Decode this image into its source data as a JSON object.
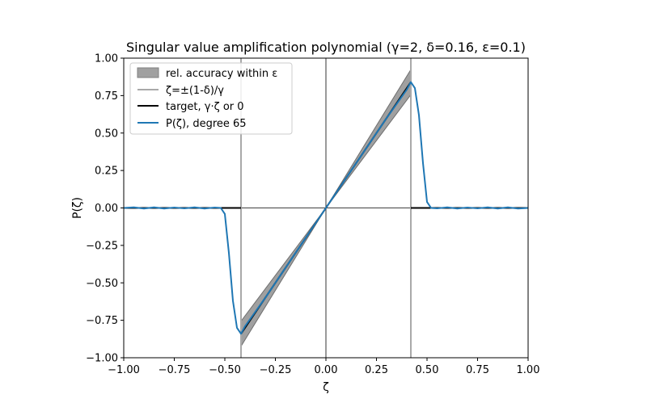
{
  "chart_data": {
    "type": "line",
    "title": "Singular value amplification polynomial (γ=2, δ=0.16, ε=0.1)",
    "xlabel": "ζ",
    "ylabel": "P(ζ)",
    "xlim": [
      -1.0,
      1.0
    ],
    "ylim": [
      -1.0,
      1.0
    ],
    "xticks": [
      "−1.00",
      "−0.75",
      "−0.50",
      "−0.25",
      "0.00",
      "0.25",
      "0.50",
      "0.75",
      "1.00"
    ],
    "yticks": [
      "−1.00",
      "−0.75",
      "−0.50",
      "−0.25",
      "0.00",
      "0.25",
      "0.50",
      "0.75",
      "1.00"
    ],
    "xtick_values": [
      -1.0,
      -0.75,
      -0.5,
      -0.25,
      0.0,
      0.25,
      0.5,
      0.75,
      1.0
    ],
    "ytick_values": [
      -1.0,
      -0.75,
      -0.5,
      -0.25,
      0.0,
      0.25,
      0.5,
      0.75,
      1.0
    ],
    "grid": false,
    "legend_position": "top-left",
    "params": {
      "gamma": 2,
      "delta": 0.16,
      "epsilon": 0.1,
      "degree": 65
    },
    "series": [
      {
        "name": "rel. accuracy within ε",
        "kind": "band",
        "color": "#808080",
        "x_range": [
          -0.42,
          0.42
        ],
        "center_slope": 2,
        "relative_width": 0.1
      },
      {
        "name": "ζ=±(1-δ)/γ",
        "kind": "vlines",
        "color": "#a9a9a9",
        "x": [
          -0.42,
          0.42
        ]
      },
      {
        "name": "target, γ·ζ or 0",
        "kind": "piecewise",
        "color": "#000000",
        "segments": [
          {
            "x": [
              -1.0,
              -0.42
            ],
            "y": [
              0,
              0
            ]
          },
          {
            "x": [
              -0.42,
              0.42
            ],
            "y": [
              -0.84,
              0.84
            ]
          },
          {
            "x": [
              0.42,
              1.0
            ],
            "y": [
              0,
              0
            ]
          }
        ]
      },
      {
        "name": "P(ζ), degree 65",
        "kind": "curve",
        "color": "#1f77b4",
        "points": [
          [
            -1.0,
            0.0
          ],
          [
            -0.95,
            0.004
          ],
          [
            -0.9,
            -0.004
          ],
          [
            -0.85,
            0.004
          ],
          [
            -0.8,
            -0.004
          ],
          [
            -0.75,
            0.003
          ],
          [
            -0.7,
            -0.003
          ],
          [
            -0.65,
            0.004
          ],
          [
            -0.6,
            -0.004
          ],
          [
            -0.55,
            0.003
          ],
          [
            -0.52,
            0.0
          ],
          [
            -0.5,
            -0.04
          ],
          [
            -0.48,
            -0.3
          ],
          [
            -0.46,
            -0.62
          ],
          [
            -0.44,
            -0.8
          ],
          [
            -0.42,
            -0.84
          ],
          [
            -0.4,
            -0.79
          ],
          [
            -0.3,
            -0.6
          ],
          [
            -0.2,
            -0.4
          ],
          [
            -0.1,
            -0.2
          ],
          [
            0.0,
            0.0
          ],
          [
            0.1,
            0.2
          ],
          [
            0.2,
            0.4
          ],
          [
            0.3,
            0.6
          ],
          [
            0.4,
            0.79
          ],
          [
            0.42,
            0.84
          ],
          [
            0.44,
            0.8
          ],
          [
            0.46,
            0.62
          ],
          [
            0.48,
            0.3
          ],
          [
            0.5,
            0.04
          ],
          [
            0.52,
            0.0
          ],
          [
            0.55,
            -0.003
          ],
          [
            0.6,
            0.004
          ],
          [
            0.65,
            -0.004
          ],
          [
            0.7,
            0.003
          ],
          [
            0.75,
            -0.003
          ],
          [
            0.8,
            0.004
          ],
          [
            0.85,
            -0.004
          ],
          [
            0.9,
            0.004
          ],
          [
            0.95,
            -0.004
          ],
          [
            1.0,
            0.0
          ]
        ]
      }
    ]
  }
}
